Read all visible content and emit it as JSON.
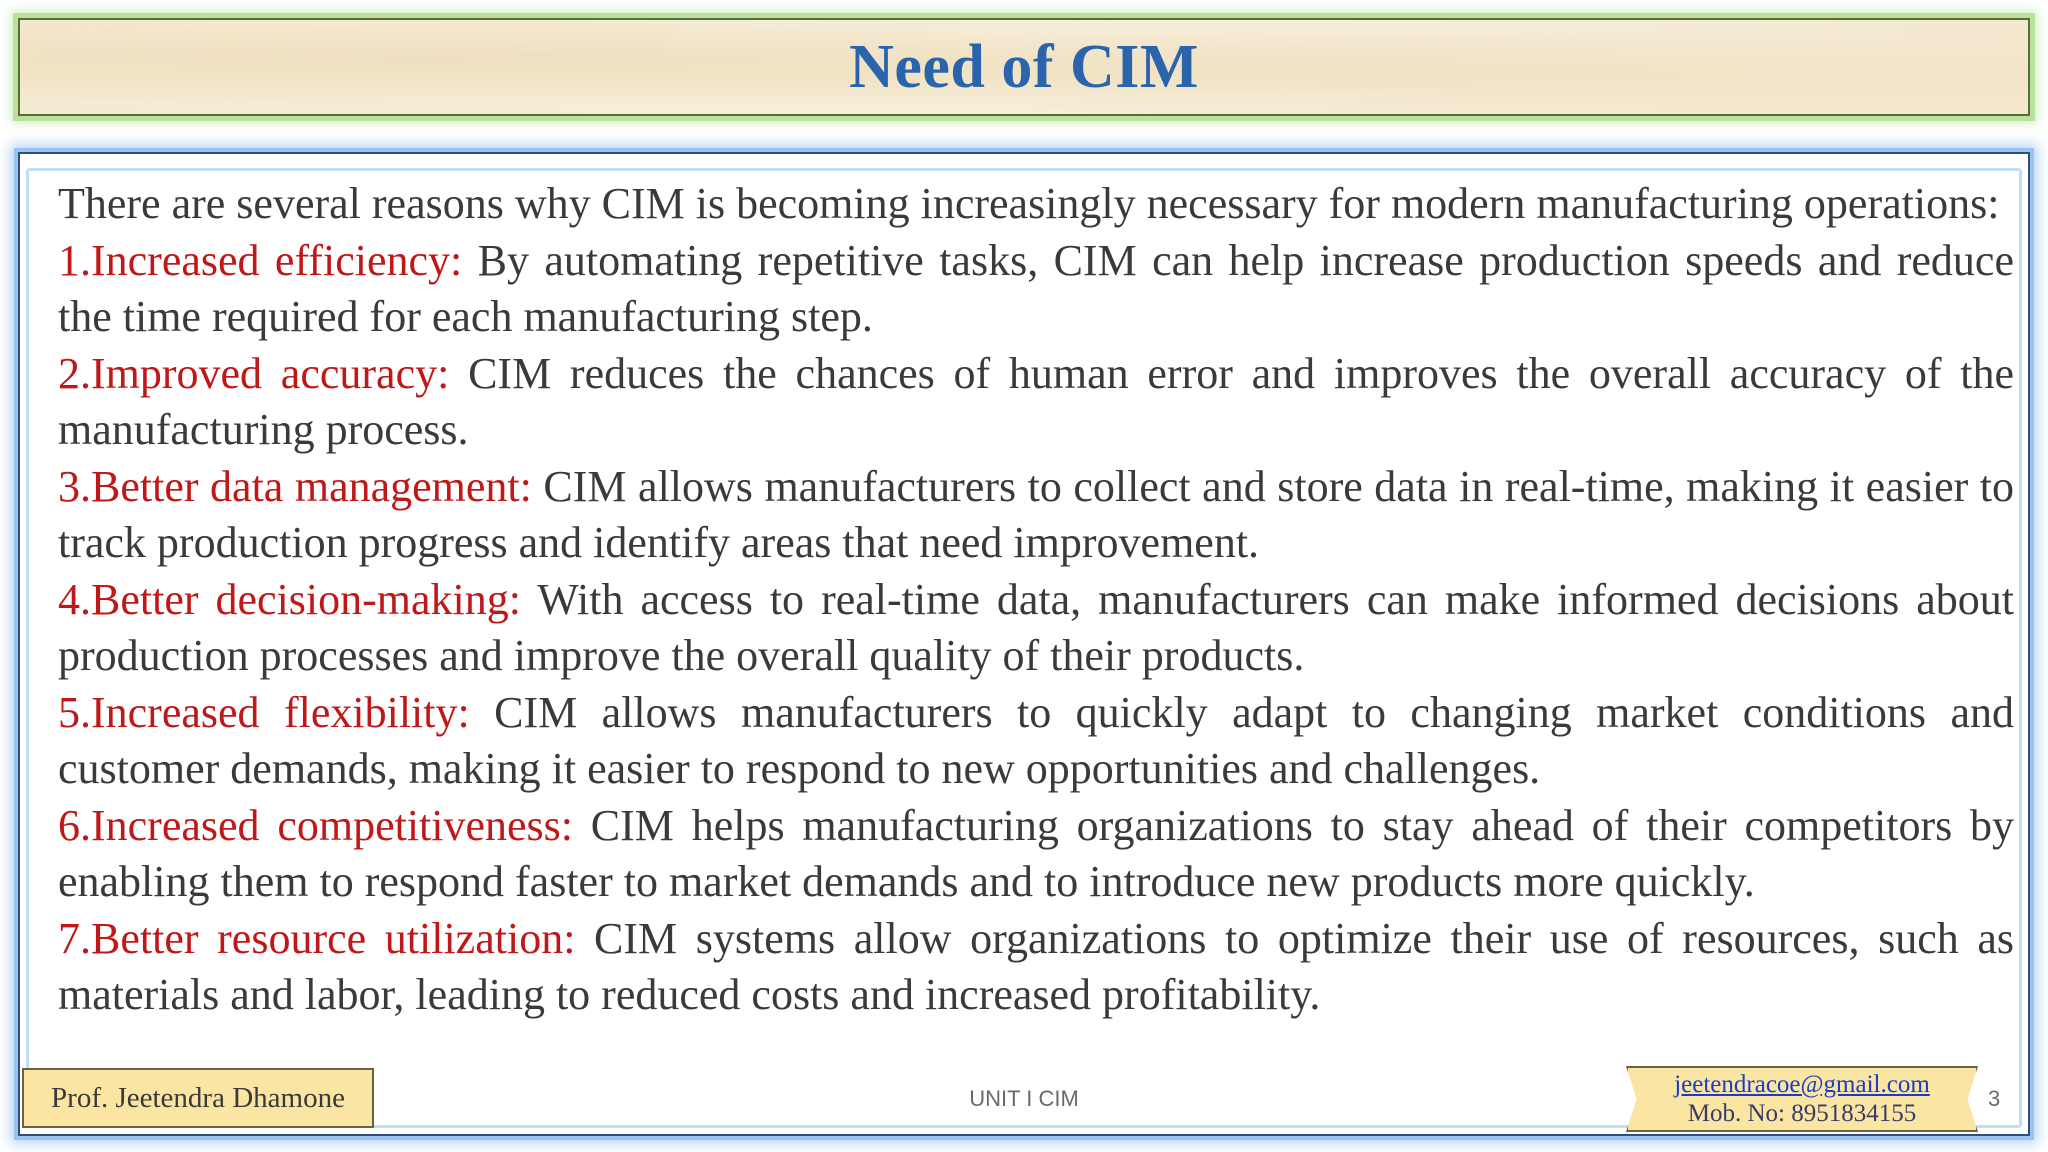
{
  "slide": {
    "title": "Need of CIM",
    "intro": "There are several reasons why CIM is becoming increasingly necessary for modern manufacturing operations:",
    "points": [
      {
        "label": "1.Increased efficiency:",
        "text": " By automating repetitive tasks, CIM can help increase production speeds and reduce the time required for each manufacturing step."
      },
      {
        "label": "2.Improved accuracy:",
        "text": " CIM reduces the chances of human error and improves the overall accuracy of the manufacturing process."
      },
      {
        "label": "3.Better data management:",
        "text": " CIM allows manufacturers to collect and store data in real-time, making it easier to track production progress and identify areas that need improvement."
      },
      {
        "label": "4.Better decision-making:",
        "text": " With access to real-time data, manufacturers can make informed decisions about production processes and improve the overall quality of their products."
      },
      {
        "label": "5.Increased flexibility:",
        "text": " CIM allows manufacturers to quickly adapt to changing market conditions and customer demands, making it easier to respond to new opportunities and challenges."
      },
      {
        "label": "6.Increased competitiveness:",
        "text": " CIM helps manufacturing organizations to stay ahead of their competitors by enabling them to respond faster to market demands and to introduce new products more quickly."
      },
      {
        "label": "7.Better resource utilization:",
        "text": " CIM systems allow organizations to optimize their use of resources, such as materials and labor, leading to reduced costs and increased profitability."
      }
    ]
  },
  "footer": {
    "author": "Prof. Jeetendra Dhamone",
    "unit": "UNIT I CIM",
    "email": "jeetendracoe@gmail.com",
    "mobile": "Mob. No: 8951834155",
    "page_number": "3"
  },
  "colors": {
    "title": "#2a64ad",
    "label": "#c01818",
    "body_text": "#3a3a3a",
    "footer_box": "#fbe5a2"
  }
}
